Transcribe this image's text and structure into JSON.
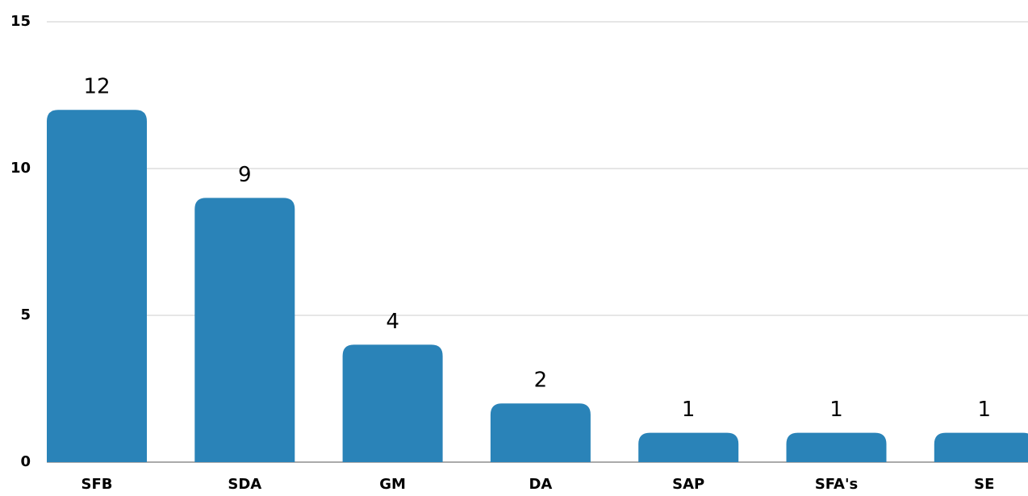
{
  "chart_data": {
    "type": "bar",
    "categories": [
      "SFB",
      "SDA",
      "GM",
      "DA",
      "SAP",
      "SFA's",
      "SE"
    ],
    "values": [
      12,
      9,
      4,
      2,
      1,
      1,
      1
    ],
    "color": "#2a83b8",
    "ylim": [
      0,
      15
    ],
    "yticks": [
      0,
      5,
      10,
      15
    ],
    "grid": true
  }
}
